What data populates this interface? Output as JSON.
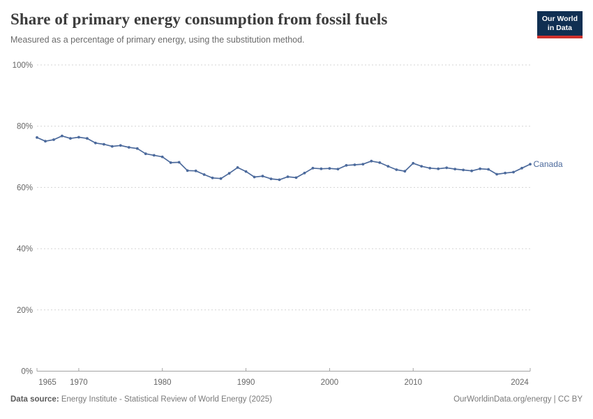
{
  "header": {
    "title": "Share of primary energy consumption from fossil fuels",
    "subtitle": "Measured as a percentage of primary energy, using the substitution method.",
    "logo": {
      "line1": "Our World",
      "line2": "in Data",
      "bg_color": "#102f52",
      "accent_color": "#ce302c"
    }
  },
  "chart_data": {
    "type": "line",
    "title": "Share of primary energy consumption from fossil fuels",
    "subtitle": "Measured as a percentage of primary energy, using the substitution method.",
    "grid": "horizontal-dashed",
    "legend_position": "end-of-line-label",
    "xlim": [
      1965,
      2024
    ],
    "ylim": [
      0,
      100
    ],
    "x_ticks": [
      1965,
      1970,
      1980,
      1990,
      2000,
      2010,
      2024
    ],
    "x_tick_labels": [
      "1965",
      "1970",
      "1980",
      "1990",
      "2000",
      "2010",
      "2024"
    ],
    "y_ticks": [
      0,
      20,
      40,
      60,
      80,
      100
    ],
    "y_tick_labels": [
      "0%",
      "20%",
      "40%",
      "60%",
      "80%",
      "100%"
    ],
    "series": [
      {
        "name": "Canada",
        "color": "#4c6a9c",
        "x": [
          1965,
          1966,
          1967,
          1968,
          1969,
          1970,
          1971,
          1972,
          1973,
          1974,
          1975,
          1976,
          1977,
          1978,
          1979,
          1980,
          1981,
          1982,
          1983,
          1984,
          1985,
          1986,
          1987,
          1988,
          1989,
          1990,
          1991,
          1992,
          1993,
          1994,
          1995,
          1996,
          1997,
          1998,
          1999,
          2000,
          2001,
          2002,
          2003,
          2004,
          2005,
          2006,
          2007,
          2008,
          2009,
          2010,
          2011,
          2012,
          2013,
          2014,
          2015,
          2016,
          2017,
          2018,
          2019,
          2020,
          2021,
          2022,
          2023,
          2024
        ],
        "values": [
          76.3,
          75.1,
          75.6,
          76.8,
          76.0,
          76.4,
          76.0,
          74.5,
          74.1,
          73.4,
          73.7,
          73.1,
          72.7,
          71.0,
          70.5,
          70.0,
          68.1,
          68.2,
          65.5,
          65.4,
          64.2,
          63.1,
          62.9,
          64.6,
          66.5,
          65.2,
          63.4,
          63.7,
          62.8,
          62.5,
          63.5,
          63.2,
          64.7,
          66.3,
          66.1,
          66.2,
          66.0,
          67.2,
          67.4,
          67.6,
          68.6,
          68.1,
          66.9,
          65.8,
          65.3,
          67.9,
          66.9,
          66.3,
          66.1,
          66.4,
          66.0,
          65.7,
          65.4,
          66.1,
          65.9,
          64.3,
          64.7,
          65.0,
          66.3,
          67.6
        ]
      }
    ]
  },
  "footer": {
    "source_label": "Data source:",
    "source_text": " Energy Institute - Statistical Review of World Energy (2025)",
    "credit": "OurWorldinData.org/energy | CC BY"
  },
  "colors": {
    "line": "#4c6a9c",
    "grid": "#d4d4d4",
    "axis": "#a3a3a3",
    "tick_text": "#666666",
    "title_text": "#3c3c3c",
    "subtitle_text": "#6b6b6b"
  }
}
